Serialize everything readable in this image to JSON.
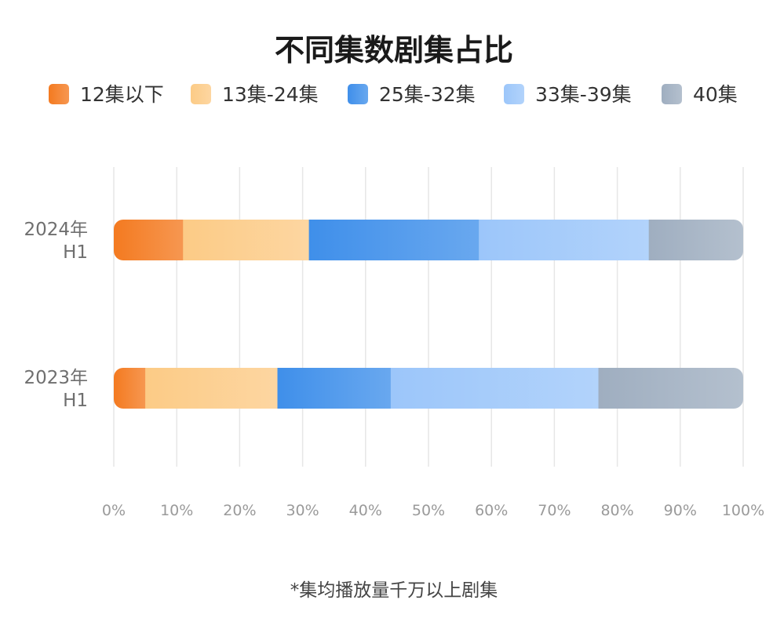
{
  "chart_data": {
    "type": "bar",
    "orientation": "horizontal",
    "stacked": true,
    "title": "不同集数剧集占比",
    "footnote": "*集均播放量千万以上剧集",
    "categories": [
      "2024年\nH1",
      "2023年\nH1"
    ],
    "series": [
      {
        "name": "12集以下",
        "color": "#F47A20",
        "values": [
          11,
          5
        ]
      },
      {
        "name": "13集-24集",
        "color": "#FCCB86",
        "values": [
          20,
          21
        ]
      },
      {
        "name": "25集-32集",
        "color": "#3F8FEA",
        "values": [
          27,
          18
        ]
      },
      {
        "name": "33集-39集",
        "color": "#9CC6FA",
        "values": [
          27,
          33
        ]
      },
      {
        "name": "40集",
        "color": "#9FAEC0",
        "values": [
          15,
          23
        ]
      }
    ],
    "xlim": [
      0,
      100
    ],
    "xticks": [
      "0%",
      "10%",
      "20%",
      "30%",
      "40%",
      "50%",
      "60%",
      "70%",
      "80%",
      "90%",
      "100%"
    ],
    "grid": true,
    "legend_position": "top"
  }
}
